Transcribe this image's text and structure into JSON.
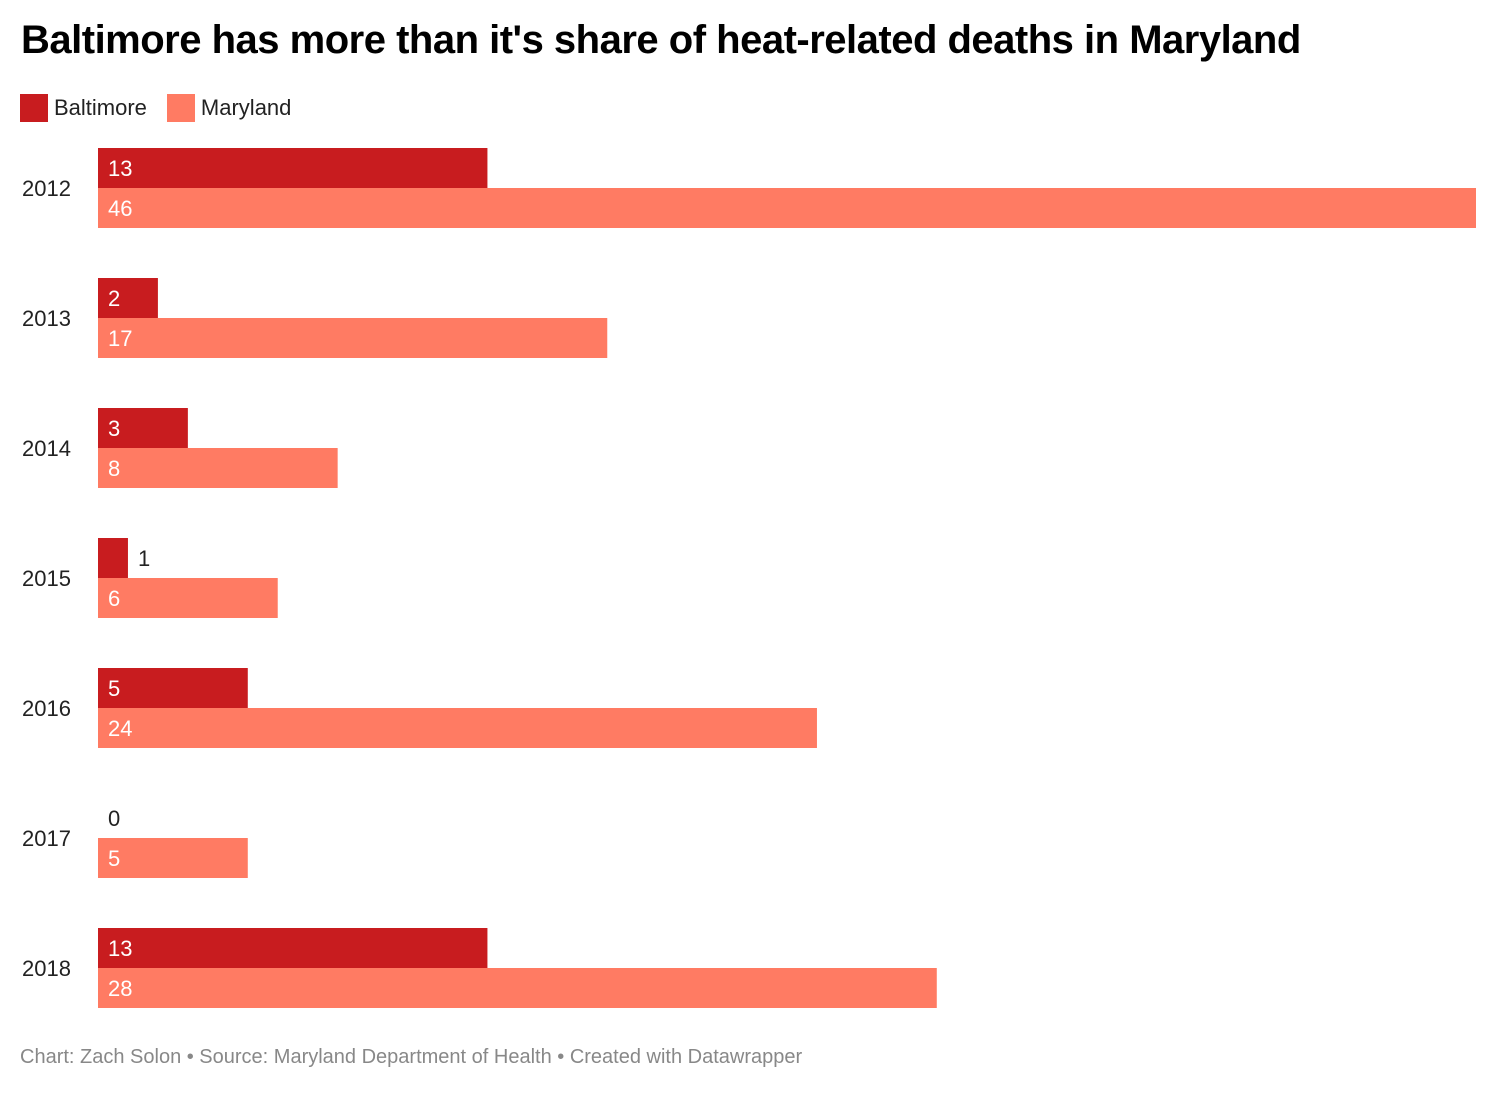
{
  "title": "Baltimore has more than it's share of heat-related deaths in Maryland",
  "footer": "Chart: Zach Solon • Source: Maryland Department of Health • Created with Datawrapper",
  "chart_data": {
    "type": "bar",
    "orientation": "horizontal",
    "title": "Baltimore has more than it's share of heat-related deaths in Maryland",
    "categories": [
      "2012",
      "2013",
      "2014",
      "2015",
      "2016",
      "2017",
      "2018"
    ],
    "series": [
      {
        "name": "Baltimore",
        "color": "#c81c1f",
        "values": [
          13,
          2,
          3,
          1,
          5,
          0,
          13
        ]
      },
      {
        "name": "Maryland",
        "color": "#ff7b63",
        "values": [
          46,
          17,
          8,
          6,
          24,
          5,
          28
        ]
      }
    ],
    "xlim": [
      0,
      46
    ],
    "legend": "top-left",
    "grid": false,
    "data_labels": true
  }
}
